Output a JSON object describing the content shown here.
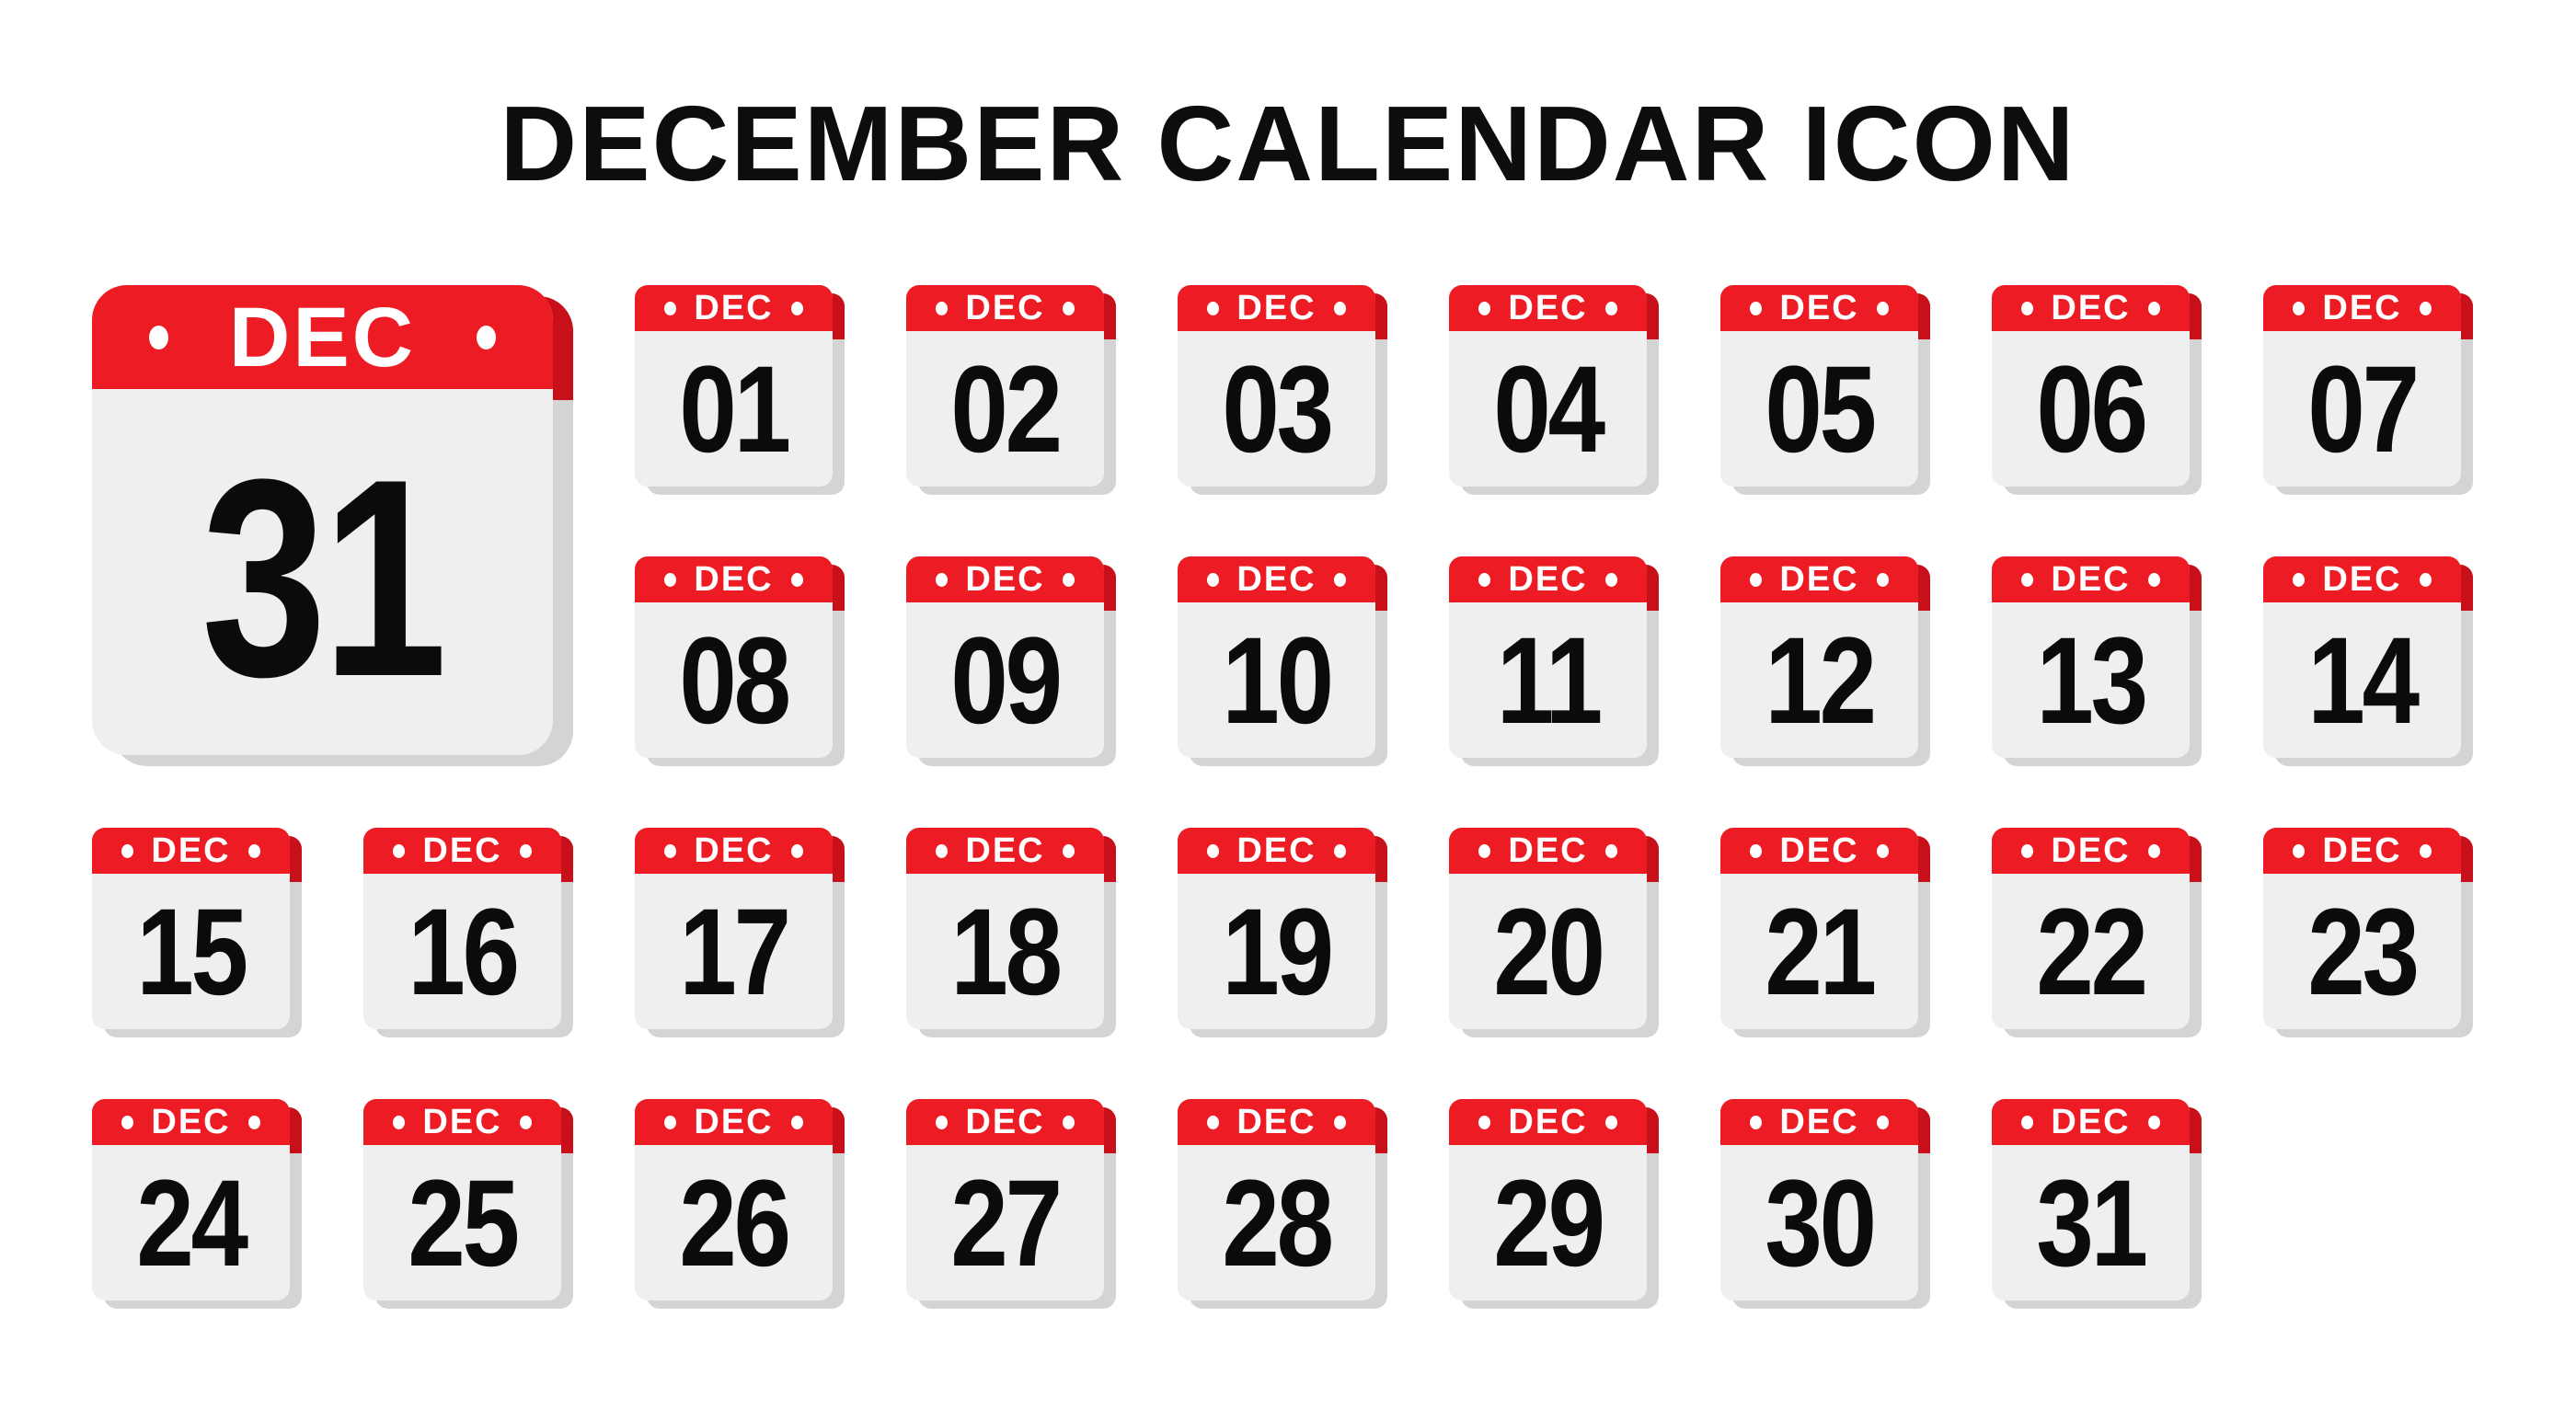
{
  "title": "DECEMBER CALENDAR ICON",
  "month_label": "DEC",
  "big_icon": {
    "month": "DEC",
    "day": "31"
  },
  "days": [
    "01",
    "02",
    "03",
    "04",
    "05",
    "06",
    "07",
    "08",
    "09",
    "10",
    "11",
    "12",
    "13",
    "14",
    "15",
    "16",
    "17",
    "18",
    "19",
    "20",
    "21",
    "22",
    "23",
    "24",
    "25",
    "26",
    "27",
    "28",
    "29",
    "30",
    "31"
  ],
  "colors": {
    "red": "#ED1C24",
    "backred": "#C8101A",
    "body": "#EFEFEF",
    "backgray": "#D4D4D4",
    "num": "#0B0B0B",
    "title": "#0D0D0D"
  }
}
